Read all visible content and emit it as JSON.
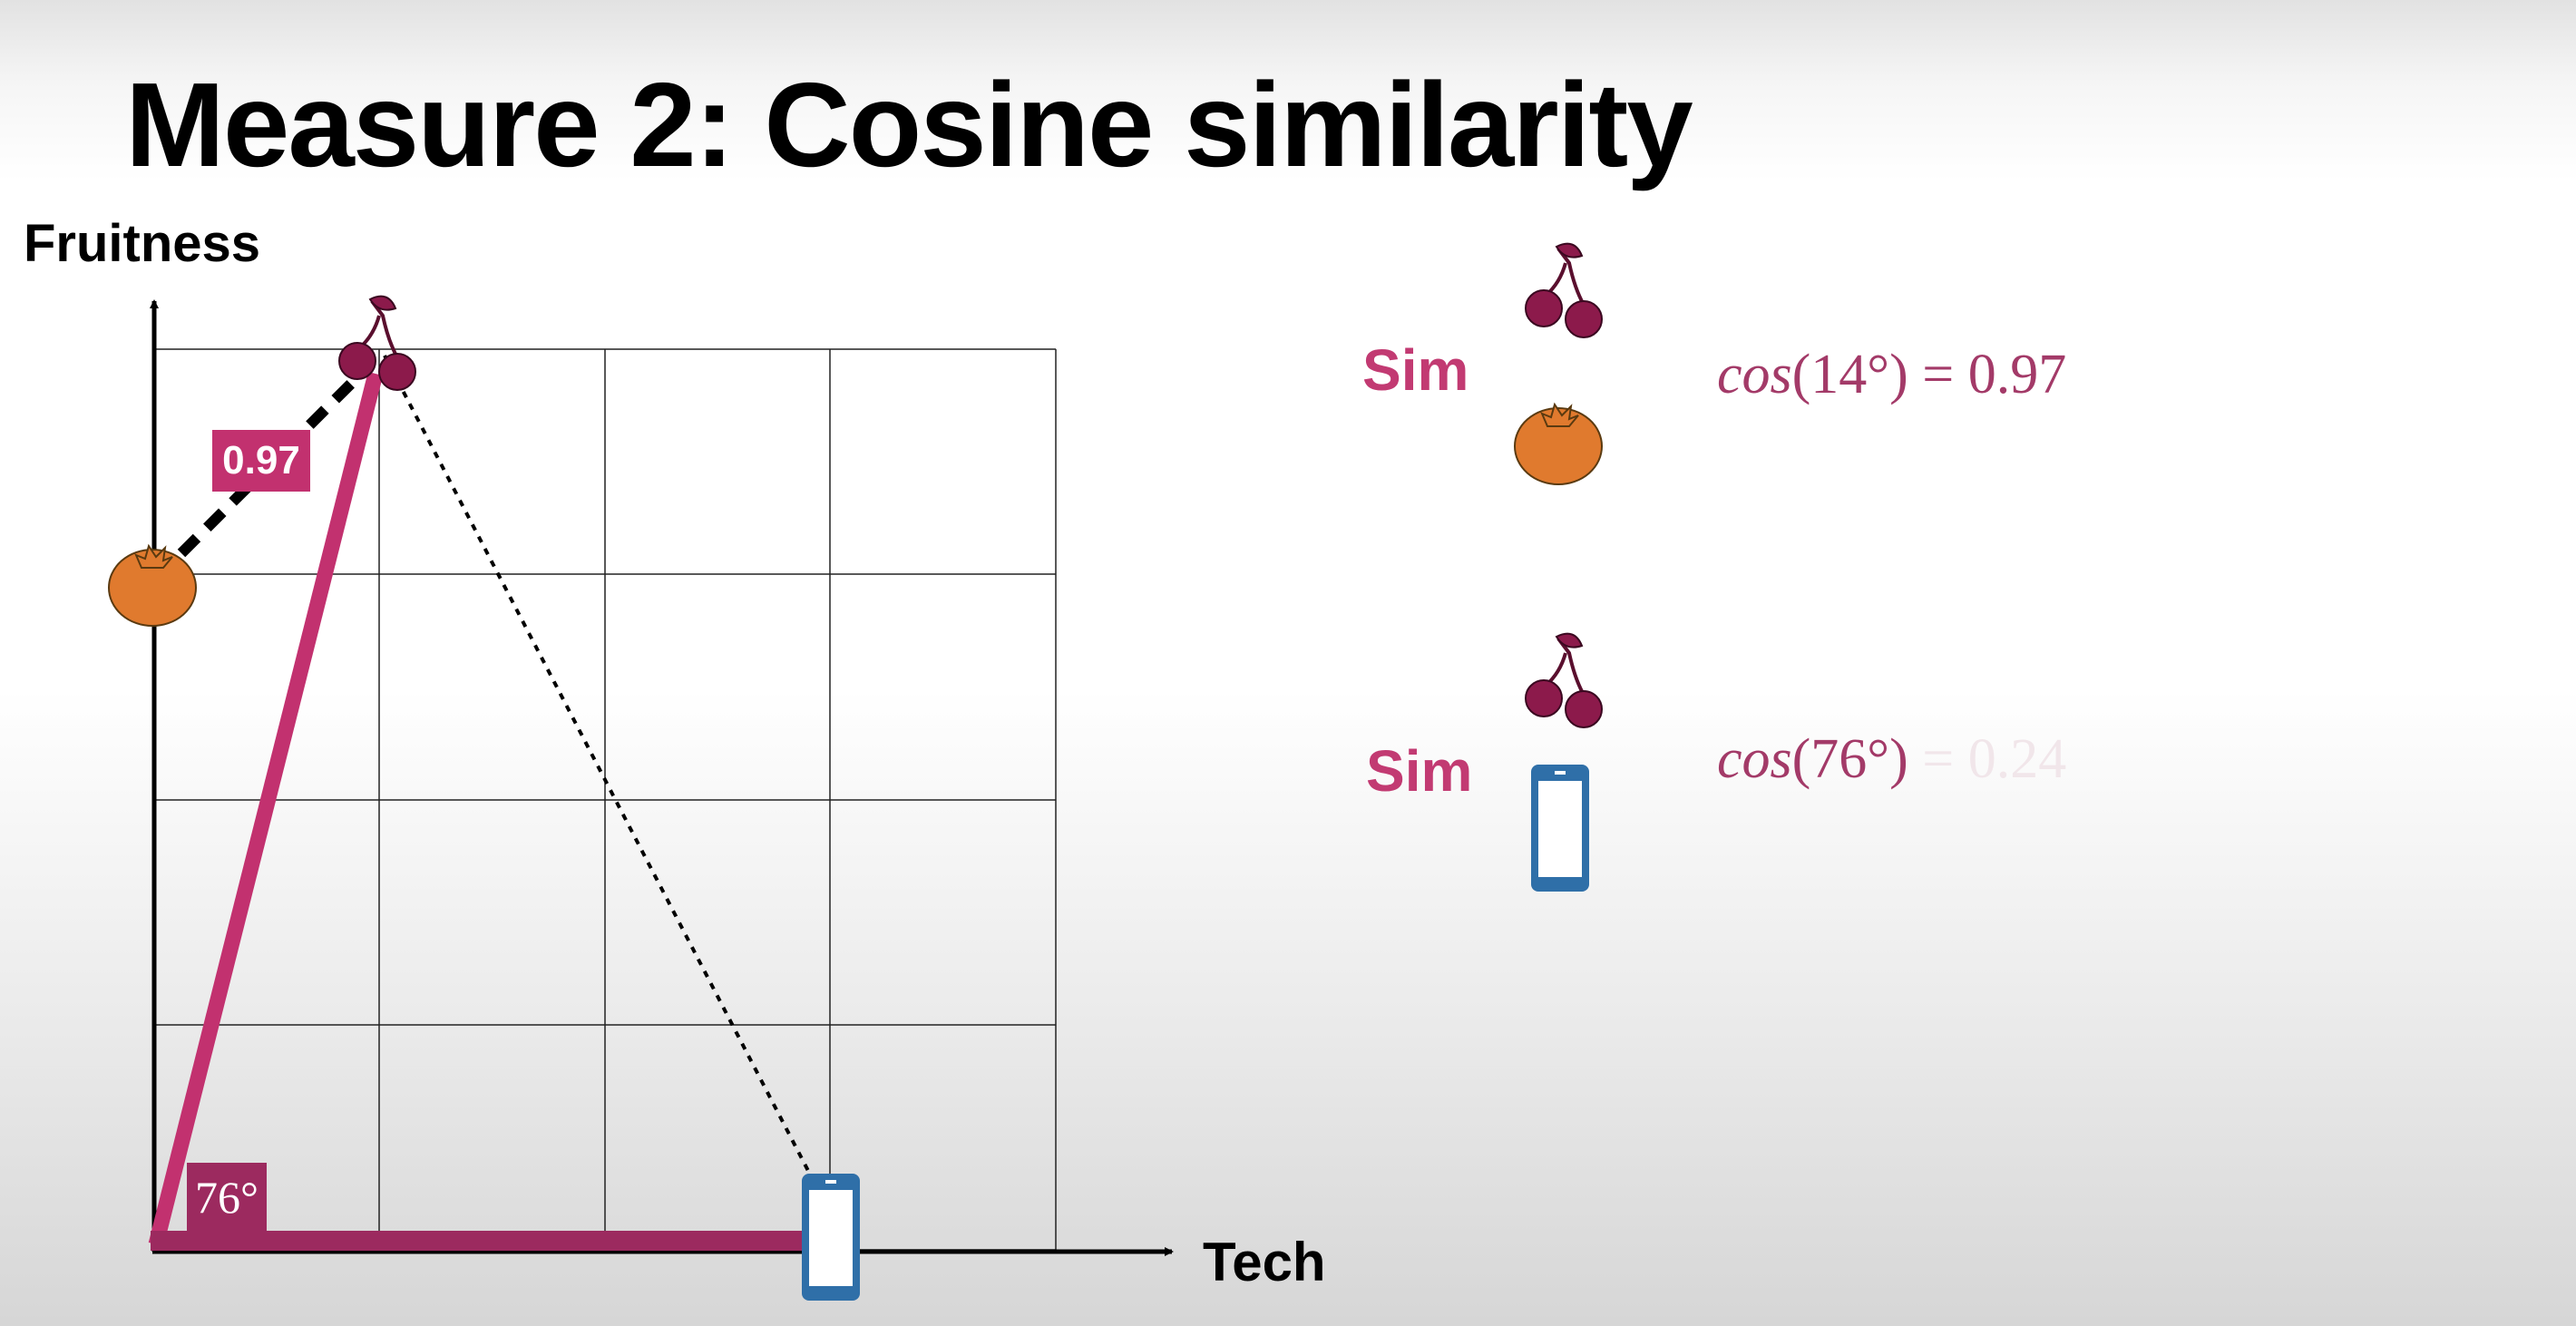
{
  "title": "Measure 2: Cosine similarity",
  "axes": {
    "y_label": "Fruitness",
    "x_label": "Tech"
  },
  "diagram": {
    "similarity_badge": "0.97",
    "angle_badge": "76°",
    "points": [
      {
        "name": "cherry-icon",
        "tech": 1,
        "fruitness": 4
      },
      {
        "name": "orange-icon",
        "tech": 0,
        "fruitness": 3
      },
      {
        "name": "phone-icon",
        "tech": 3,
        "fruitness": 0
      }
    ]
  },
  "comparisons": [
    {
      "label": "Sim",
      "item_a": "cherry-icon",
      "item_b": "orange-icon",
      "fn": "cos",
      "angle": "(14°)",
      "result": "= 0.97"
    },
    {
      "label": "Sim",
      "item_a": "cherry-icon",
      "item_b": "phone-icon",
      "fn": "cos",
      "angle": "(76°)",
      "result": "= 0.24"
    }
  ],
  "colors": {
    "accent": "#c2316f",
    "accent_dark": "#9c2a5f",
    "cherry": "#8c1a4b",
    "orange": "#e07a2e",
    "phone": "#2f6fa8"
  }
}
